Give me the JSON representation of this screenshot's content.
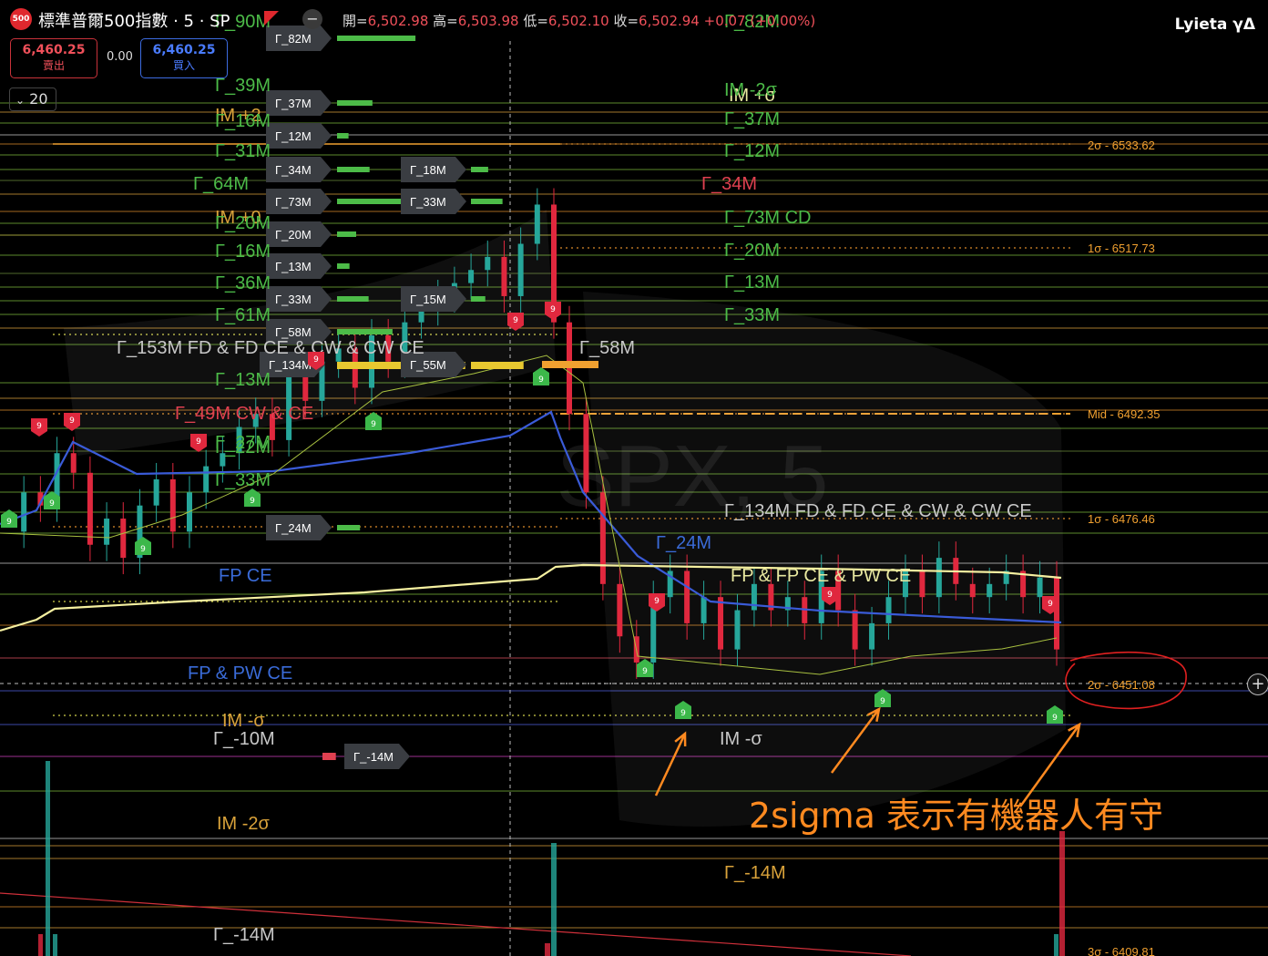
{
  "header": {
    "symbol_badge": "500",
    "title": "標準普爾500指數 · 5 · SP",
    "open_label": "開=",
    "open": "6,502.98",
    "high_label": "高=",
    "high": "6,503.98",
    "low_label": "低=",
    "low": "6,502.10",
    "close_label": "收=",
    "close": "6,502.94",
    "change": "+0.07 (+0.00%)",
    "brand": "Lyieta γΔ",
    "minus_icon": "minus-circle-icon"
  },
  "trade": {
    "sell_price": "6,460.25",
    "sell_label": "賣出",
    "spread": "0.00",
    "buy_price": "6,460.25",
    "buy_label": "買入"
  },
  "interval": {
    "value": "20",
    "icon": "chevron-down-icon"
  },
  "plus_icon": "plus-circle-icon",
  "watermark": "SPX, 5",
  "colors": {
    "up": "#26a69a",
    "down": "#e0283e",
    "vwap": "#3a5bd8",
    "vah": "#f5f0a0",
    "sigma": "#f0a030",
    "annotation": "#ff8a20",
    "circle": "#e02020"
  },
  "chart_data": {
    "type": "candlestick",
    "ylim": [
      6405,
      6545
    ],
    "sigma_levels": [
      {
        "label": "2σ - 6533.62",
        "value": 6533.62
      },
      {
        "label": "1σ - 6517.73",
        "value": 6517.73
      },
      {
        "label": "Mid - 6492.35",
        "value": 6492.35
      },
      {
        "label": "1σ - 6476.46",
        "value": 6476.46
      },
      {
        "label": "2σ - 6451.08",
        "value": 6451.08
      },
      {
        "label": "3σ - 6409.81",
        "value": 6409.81
      }
    ],
    "price_path": [
      6470,
      6476,
      6474,
      6482,
      6479,
      6468,
      6472,
      6466,
      6474,
      6478,
      6470,
      6476,
      6480,
      6482,
      6486,
      6488,
      6484,
      6494,
      6490,
      6496,
      6498,
      6492,
      6500,
      6496,
      6502,
      6504,
      6506,
      6508,
      6510,
      6512,
      6506,
      6514,
      6520,
      6502,
      6488,
      6476,
      6462,
      6454,
      6450,
      6460,
      6464,
      6456,
      6460,
      6452,
      6458,
      6462,
      6458,
      6460,
      6456,
      6464,
      6458,
      6452,
      6456,
      6460,
      6464,
      6460,
      6466,
      6462,
      6460,
      6462,
      6464,
      6460,
      6463,
      6452
    ],
    "left_labels": [
      "Γ_90M",
      "Γ_39M",
      "IM +2",
      "Γ_16M",
      "Γ_31M",
      "Γ_64M",
      "IM +0",
      "Γ_20M",
      "Γ_16M",
      "Γ_36M",
      "Γ_61M",
      "Γ_153M  FD & FD CE & CW & CW CE",
      "Γ_13M",
      "Γ_49M  CW & CE",
      "Γ_27M",
      "Γ_22M",
      "Γ_33M",
      "FP CE",
      "FP & PW CE",
      "IM -σ",
      "Γ_-10M",
      "IM -2σ",
      "Γ_-14M"
    ],
    "mid_labels": [
      "Γ_82M",
      "IM +σ",
      "Γ_37M",
      "Γ_12M",
      "Γ_34M",
      "Γ_73M  CD",
      "Γ_20M",
      "Γ_13M",
      "Γ_33M",
      "Γ_58M",
      "Γ_134M  FD & FD CE & CW & CW CE",
      "Γ_24M",
      "FP & FP CE & PW CE",
      "IM -σ",
      "Γ_-14M",
      "IM -2σ"
    ],
    "bars": [
      {
        "label": "Γ_82M",
        "value": 82
      },
      {
        "label": "Γ_37M",
        "value": 37
      },
      {
        "label": "Γ_12M",
        "value": 12
      },
      {
        "label": "Γ_34M",
        "value": 34
      },
      {
        "label": "Γ_73M",
        "value": 73
      },
      {
        "label": "Γ_20M",
        "value": 20
      },
      {
        "label": "Γ_13M",
        "value": 13
      },
      {
        "label": "Γ_33M",
        "value": 33
      },
      {
        "label": "Γ_58M",
        "value": 58
      },
      {
        "label": "Γ_134M",
        "value": 134
      },
      {
        "label": "Γ_24M",
        "value": 24
      },
      {
        "label": "Γ_18M",
        "value": 18
      },
      {
        "label": "Γ_33M",
        "value": 33
      },
      {
        "label": "Γ_15M",
        "value": 15
      },
      {
        "label": "Γ_55M",
        "value": 55
      },
      {
        "label": "Γ_-14M",
        "value": -14
      }
    ],
    "signal_up_label": "9",
    "signal_down_label": "9",
    "annotation": "2sigma 表示有機器人有守"
  }
}
